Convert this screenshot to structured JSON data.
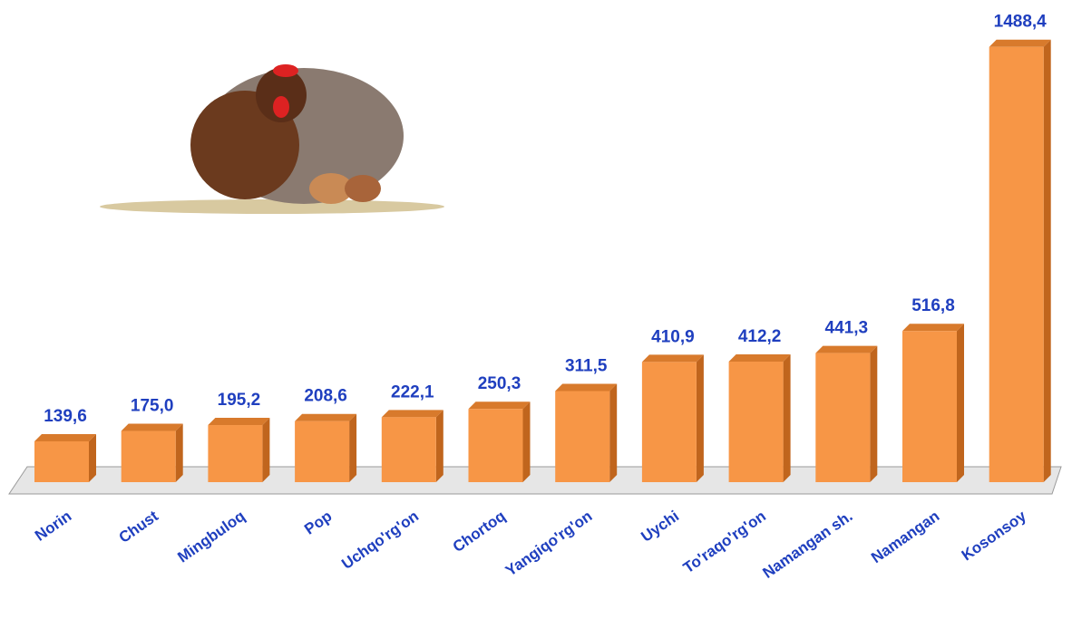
{
  "chart_data": {
    "type": "bar",
    "categories": [
      "Norin",
      "Chust",
      "Mingbuloq",
      "Pop",
      "Uchqo'rg'on",
      "Chortoq",
      "Yangiqo'rg'on",
      "Uychi",
      "To'raqo'rg'on",
      "Namangan sh.",
      "Namangan",
      "Kosonsoy"
    ],
    "values": [
      139.6,
      175.0,
      195.2,
      208.6,
      222.1,
      250.3,
      311.5,
      410.9,
      412.2,
      441.3,
      516.8,
      1488.4
    ],
    "value_labels": [
      "139,6",
      "175,0",
      "195,2",
      "208,6",
      "222,1",
      "250,3",
      "311,5",
      "410,9",
      "412,2",
      "441,3",
      "516,8",
      "1488,4"
    ],
    "color": "#f79646",
    "ylim": [
      0,
      1500
    ]
  }
}
